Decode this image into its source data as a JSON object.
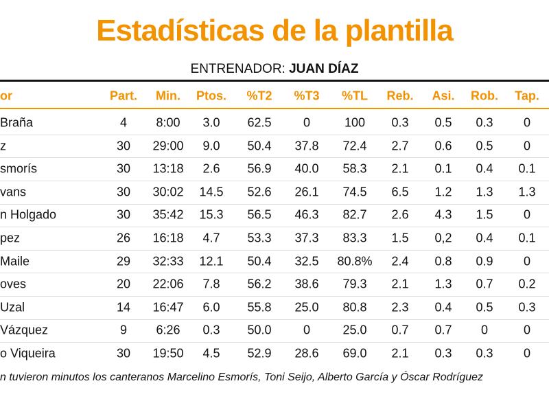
{
  "title": "Estadísticas de la plantilla",
  "subtitle": {
    "label": "ENTRENADOR:",
    "name": "JUAN DÍAZ"
  },
  "table": {
    "header": [
      "or",
      "Part.",
      "Min.",
      "Ptos.",
      "%T2",
      "%T3",
      "%TL",
      "Reb.",
      "Asi.",
      "Rob.",
      "Tap."
    ],
    "rows": [
      [
        "Braña",
        "4",
        "8:00",
        "3.0",
        "62.5",
        "0",
        "100",
        "0.3",
        "0.5",
        "0.3",
        "0"
      ],
      [
        "z",
        "30",
        "29:00",
        "9.0",
        "50.4",
        "37.8",
        "72.4",
        "2.7",
        "0.6",
        "0.5",
        "0"
      ],
      [
        "smorís",
        "30",
        "13:18",
        "2.6",
        "56.9",
        "40.0",
        "58.3",
        "2.1",
        "0.1",
        "0.4",
        "0.1"
      ],
      [
        "vans",
        "30",
        "30:02",
        "14.5",
        "52.6",
        "26.1",
        "74.5",
        "6.5",
        "1.2",
        "1.3",
        "1.3"
      ],
      [
        "n Holgado",
        "30",
        "35:42",
        "15.3",
        "56.5",
        "46.3",
        "82.7",
        "2.6",
        "4.3",
        "1.5",
        "0"
      ],
      [
        "pez",
        "26",
        "16:18",
        "4.7",
        "53.3",
        "37.3",
        "83.3",
        "1.5",
        "0,2",
        "0.4",
        "0.1"
      ],
      [
        "Maile",
        "29",
        "32:33",
        "12.1",
        "50.4",
        "32.5",
        "80.8%",
        "2.4",
        "0.8",
        "0.9",
        "0"
      ],
      [
        "oves",
        "20",
        "22:06",
        "7.8",
        "56.2",
        "38.6",
        "79.3",
        "2.1",
        "1.3",
        "0.7",
        "0.2"
      ],
      [
        "Uzal",
        "14",
        "16:47",
        "6.0",
        "55.8",
        "25.0",
        "80.8",
        "2.3",
        "0.4",
        "0.5",
        "0.3"
      ],
      [
        "Vázquez",
        "9",
        "6:26",
        "0.3",
        "50.0",
        "0",
        "25.0",
        "0.7",
        "0.7",
        "0",
        "0"
      ],
      [
        "o Viqueira",
        "30",
        "19:50",
        "4.5",
        "52.9",
        "28.6",
        "69.0",
        "2.1",
        "0.3",
        "0.3",
        "0"
      ]
    ]
  },
  "footnote": "n tuvieron minutos los canteranos Marcelino Esmorís, Toni Seijo, Alberto García y Óscar Rodríguez"
}
